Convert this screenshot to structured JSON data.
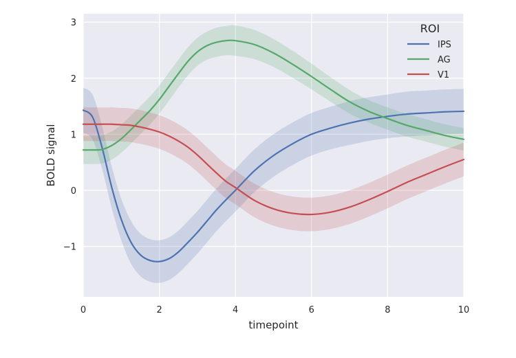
{
  "chart_data": {
    "type": "line",
    "title": "",
    "xlabel": "timepoint",
    "ylabel": "BOLD signal",
    "xlim": [
      0,
      10
    ],
    "ylim": [
      -1.9,
      3.15
    ],
    "xticks": [
      0,
      2,
      4,
      6,
      8,
      10
    ],
    "yticks": [
      -1,
      0,
      1,
      2,
      3
    ],
    "xtick_labels": [
      "0",
      "2",
      "4",
      "6",
      "8",
      "10"
    ],
    "ytick_labels": [
      "−1",
      "0",
      "1",
      "2",
      "3"
    ],
    "grid": true,
    "legend": {
      "title": "ROI",
      "position": "top-right"
    },
    "series": [
      {
        "name": "IPS",
        "color": "#4c72b0",
        "x": [
          0,
          0.25,
          0.5,
          0.75,
          1,
          1.25,
          1.5,
          1.75,
          2,
          2.25,
          2.5,
          2.75,
          3,
          3.25,
          3.5,
          3.75,
          4,
          4.5,
          5,
          5.5,
          6,
          6.5,
          7,
          7.5,
          8,
          8.5,
          9,
          9.5,
          10
        ],
        "y": [
          1.43,
          1.3,
          0.75,
          0.05,
          -0.52,
          -0.92,
          -1.15,
          -1.25,
          -1.27,
          -1.22,
          -1.1,
          -0.93,
          -0.75,
          -0.55,
          -0.35,
          -0.17,
          0.0,
          0.35,
          0.62,
          0.83,
          1.0,
          1.11,
          1.2,
          1.27,
          1.32,
          1.36,
          1.38,
          1.4,
          1.41
        ],
        "err": [
          0.4,
          0.4,
          0.38,
          0.37,
          0.37,
          0.38,
          0.38,
          0.38,
          0.38,
          0.38,
          0.38,
          0.38,
          0.38,
          0.38,
          0.38,
          0.38,
          0.38,
          0.38,
          0.38,
          0.38,
          0.38,
          0.38,
          0.39,
          0.39,
          0.39,
          0.4,
          0.4,
          0.4,
          0.4
        ]
      },
      {
        "name": "AG",
        "color": "#55a868",
        "x": [
          0,
          0.25,
          0.5,
          0.75,
          1,
          1.25,
          1.5,
          1.75,
          2,
          2.25,
          2.5,
          2.75,
          3,
          3.25,
          3.5,
          3.75,
          4,
          4.5,
          5,
          5.5,
          6,
          6.5,
          7,
          7.5,
          8,
          8.5,
          9,
          9.5,
          10
        ],
        "y": [
          0.72,
          0.72,
          0.73,
          0.8,
          0.92,
          1.08,
          1.25,
          1.42,
          1.62,
          1.85,
          2.08,
          2.3,
          2.47,
          2.58,
          2.64,
          2.67,
          2.67,
          2.6,
          2.45,
          2.25,
          2.03,
          1.8,
          1.58,
          1.41,
          1.28,
          1.16,
          1.07,
          0.98,
          0.91
        ],
        "err": [
          0.25,
          0.25,
          0.25,
          0.25,
          0.25,
          0.25,
          0.25,
          0.25,
          0.25,
          0.25,
          0.25,
          0.25,
          0.25,
          0.25,
          0.26,
          0.26,
          0.27,
          0.26,
          0.25,
          0.24,
          0.23,
          0.22,
          0.21,
          0.2,
          0.2,
          0.2,
          0.2,
          0.2,
          0.2
        ]
      },
      {
        "name": "V1",
        "color": "#c44e52",
        "x": [
          0,
          0.25,
          0.5,
          0.75,
          1,
          1.25,
          1.5,
          1.75,
          2,
          2.25,
          2.5,
          2.75,
          3,
          3.25,
          3.5,
          3.75,
          4,
          4.5,
          5,
          5.5,
          6,
          6.5,
          7,
          7.5,
          8,
          8.5,
          9,
          9.5,
          10
        ],
        "y": [
          1.18,
          1.18,
          1.18,
          1.18,
          1.17,
          1.16,
          1.13,
          1.09,
          1.04,
          0.97,
          0.88,
          0.77,
          0.63,
          0.47,
          0.31,
          0.16,
          0.05,
          -0.18,
          -0.33,
          -0.41,
          -0.43,
          -0.39,
          -0.3,
          -0.17,
          -0.02,
          0.14,
          0.28,
          0.42,
          0.55
        ],
        "err": [
          0.3,
          0.3,
          0.3,
          0.3,
          0.3,
          0.3,
          0.3,
          0.3,
          0.3,
          0.3,
          0.3,
          0.3,
          0.3,
          0.3,
          0.3,
          0.3,
          0.3,
          0.3,
          0.3,
          0.3,
          0.3,
          0.3,
          0.3,
          0.3,
          0.3,
          0.3,
          0.3,
          0.3,
          0.3
        ]
      }
    ]
  }
}
